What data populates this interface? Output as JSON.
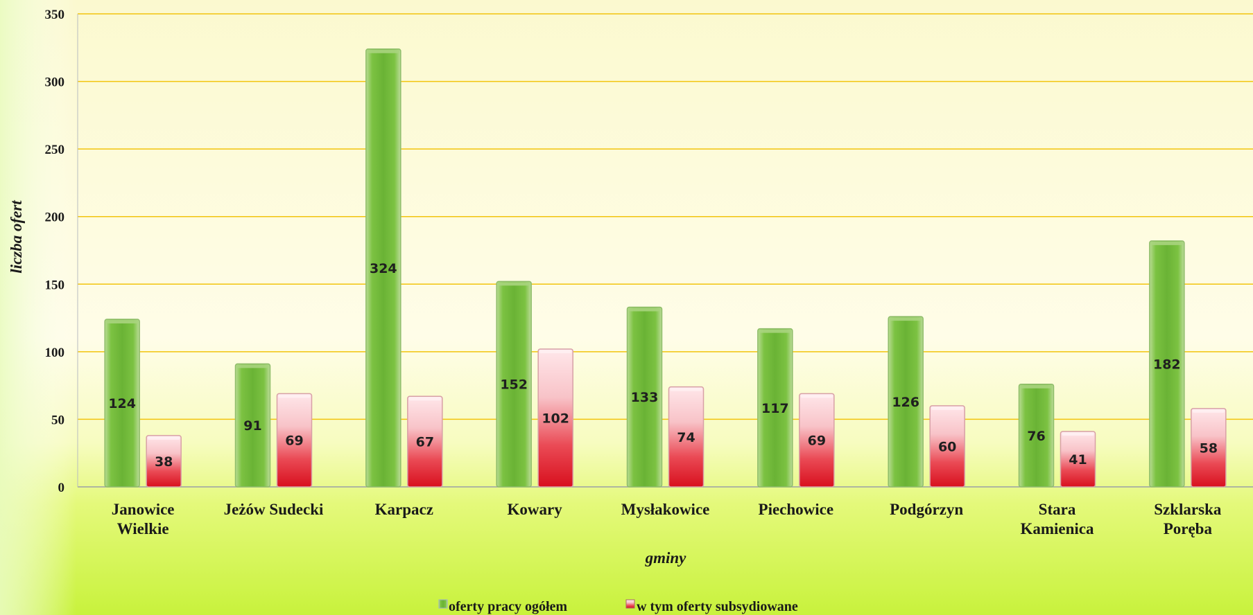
{
  "chart_data": {
    "type": "bar",
    "xlabel": "gminy",
    "ylabel": "liczba ofert",
    "ylim": [
      0,
      350
    ],
    "yticks": [
      0,
      50,
      100,
      150,
      200,
      250,
      300,
      350
    ],
    "grid": true,
    "legend_position": "bottom",
    "categories": [
      [
        "Janowice",
        "Wielkie"
      ],
      [
        "Jeżów Sudecki"
      ],
      [
        "Karpacz"
      ],
      [
        "Kowary"
      ],
      [
        "Mysłakowice"
      ],
      [
        "Piechowice"
      ],
      [
        "Podgórzyn"
      ],
      [
        "Stara",
        "Kamienica"
      ],
      [
        "Szklarska",
        "Poręba"
      ]
    ],
    "series": [
      {
        "name": "oferty pracy ogółem",
        "color": "#7cc242",
        "values": [
          124,
          91,
          324,
          152,
          133,
          117,
          126,
          76,
          182
        ]
      },
      {
        "name": "w tym oferty subsydiowane",
        "color": "#e0202e",
        "values": [
          38,
          69,
          67,
          102,
          74,
          69,
          60,
          41,
          58
        ]
      }
    ]
  }
}
